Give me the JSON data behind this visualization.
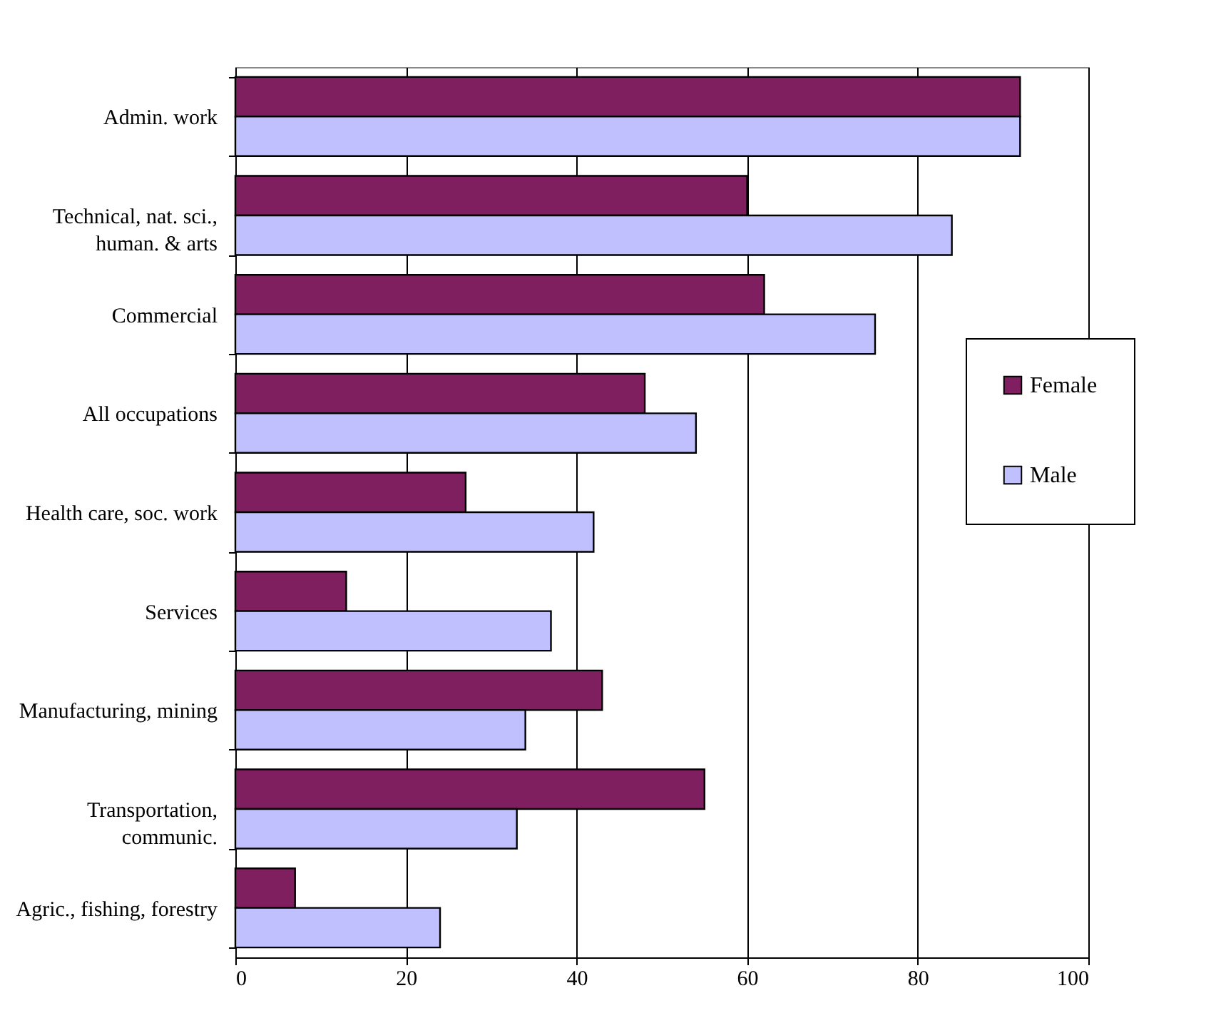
{
  "chart_data": {
    "type": "bar",
    "orientation": "horizontal",
    "categories": [
      "Admin. work",
      "Technical, nat. sci.,\nhuman. & arts",
      "Commercial",
      "All occupations",
      "Health care, soc. work",
      "Services",
      "Manufacturing, mining",
      "Transportation,\ncommunic.",
      "Agric., fishing, forestry"
    ],
    "series": [
      {
        "name": "Female",
        "color": "#7f1f5f",
        "values": [
          92,
          60,
          62,
          48,
          27,
          13,
          43,
          55,
          7
        ]
      },
      {
        "name": "Male",
        "color": "#c0c0ff",
        "values": [
          92,
          84,
          75,
          54,
          42,
          37,
          34,
          33,
          24
        ]
      }
    ],
    "xlim": [
      0,
      100
    ],
    "xticks": [
      0,
      20,
      40,
      60,
      80,
      100
    ],
    "grid": "x",
    "legend": "right"
  }
}
